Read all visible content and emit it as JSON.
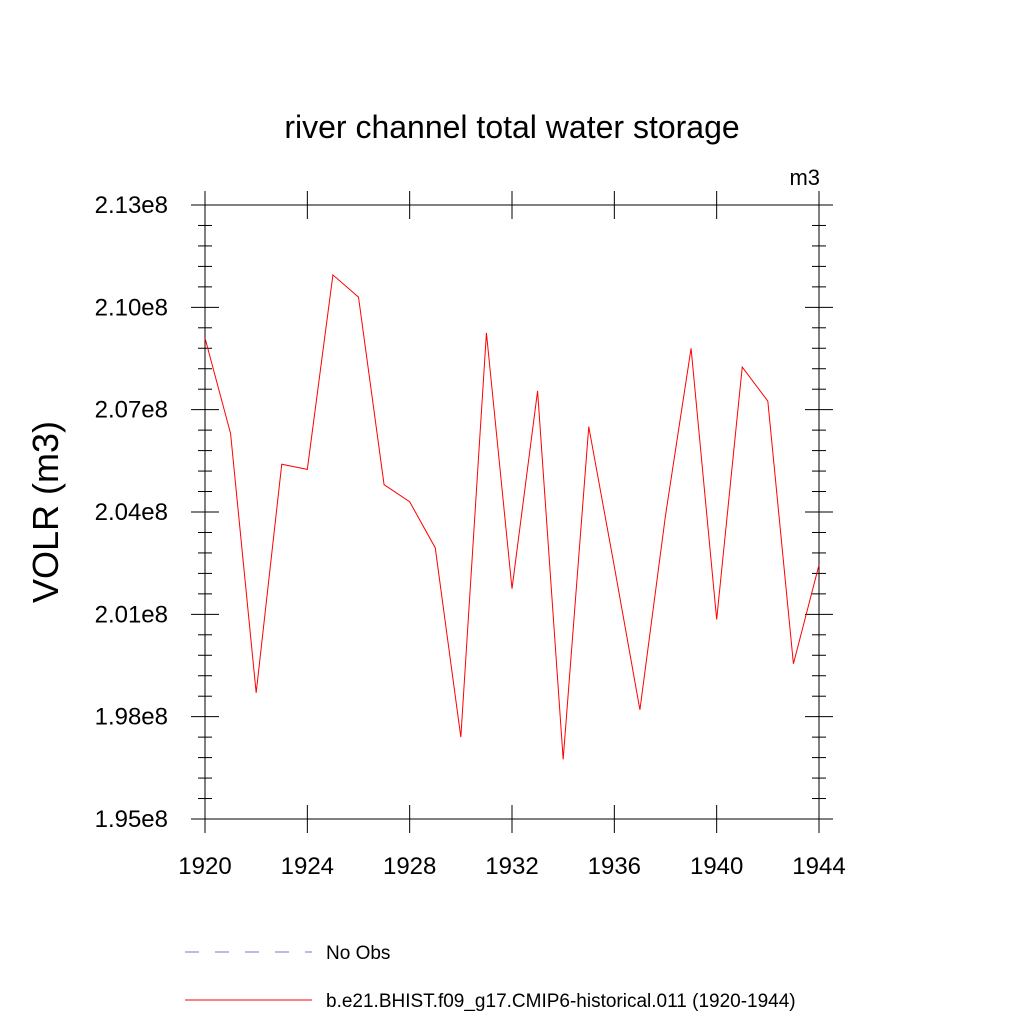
{
  "chart_data": {
    "type": "line",
    "title": "river channel total water storage",
    "units_label": "m3",
    "ylabel": "VOLR  (m3)",
    "xlabel": "",
    "xlim": [
      1920,
      1944
    ],
    "ylim": [
      195000000.0,
      213000000.0
    ],
    "x_ticks": [
      1920,
      1924,
      1928,
      1932,
      1936,
      1940,
      1944
    ],
    "x_tick_labels": [
      "1920",
      "1924",
      "1928",
      "1932",
      "1936",
      "1940",
      "1944"
    ],
    "y_ticks": [
      195000000.0,
      198000000.0,
      201000000.0,
      204000000.0,
      207000000.0,
      210000000.0,
      213000000.0
    ],
    "y_tick_labels": [
      "1.95e8",
      "1.98e8",
      "2.01e8",
      "2.04e8",
      "2.07e8",
      "2.10e8",
      "2.13e8"
    ],
    "grid": false,
    "legend_placement": "bottom",
    "series": [
      {
        "name": "b.e21.BHIST.f09_g17.CMIP6-historical.011 (1920-1944)",
        "color": "#ff0000",
        "dash": "solid",
        "x": [
          1920,
          1921,
          1922,
          1923,
          1924,
          1925,
          1926,
          1927,
          1928,
          1929,
          1930,
          1931,
          1932,
          1933,
          1934,
          1935,
          1936,
          1937,
          1938,
          1939,
          1940,
          1941,
          1942,
          1943,
          1944
        ],
        "values": [
          209100000.0,
          206300000.0,
          198700000.0,
          205400000.0,
          205250000.0,
          210950000.0,
          210300000.0,
          204800000.0,
          204300000.0,
          202950000.0,
          197400000.0,
          209250000.0,
          201750000.0,
          207550000.0,
          196750000.0,
          206500000.0,
          202400000.0,
          198200000.0,
          203900000.0,
          208800000.0,
          200850000.0,
          208250000.0,
          207250000.0,
          199550000.0,
          202450000.0
        ]
      }
    ],
    "legend": [
      {
        "label": "No Obs",
        "color": "#7b76c9",
        "dash": "dashed"
      },
      {
        "label": "b.e21.BHIST.f09_g17.CMIP6-historical.011 (1920-1944)",
        "color": "#ff0000",
        "dash": "solid"
      }
    ]
  }
}
